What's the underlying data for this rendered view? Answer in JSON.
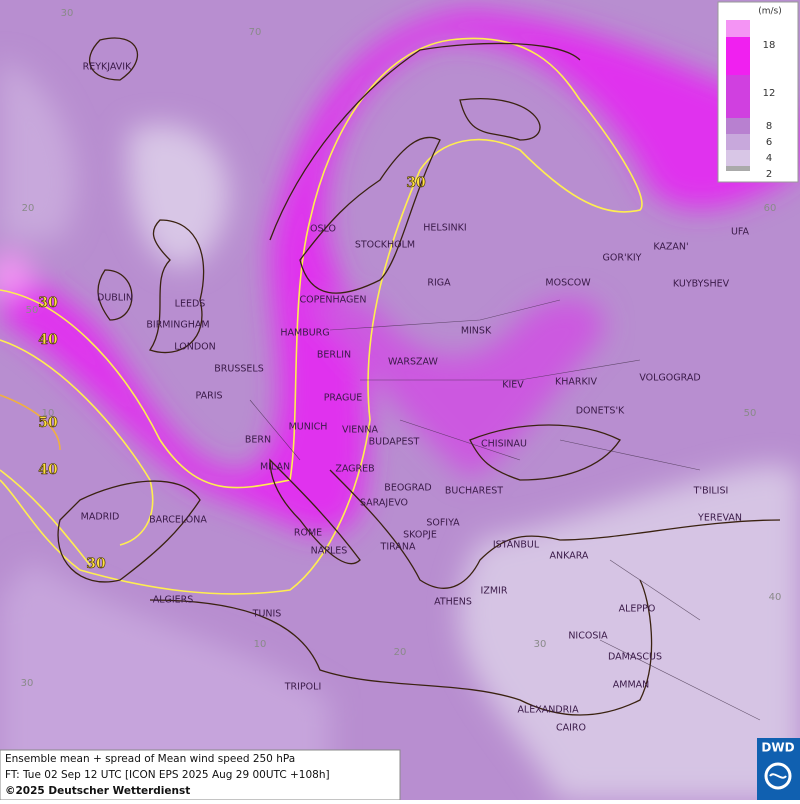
{
  "map": {
    "legend": {
      "unit": "(m/s)",
      "labels": [
        "18",
        "12",
        "8",
        "6",
        "4",
        "2"
      ]
    },
    "cities": [
      "REYKJAVIK",
      "OSLO",
      "STOCKHOLM",
      "HELSINKI",
      "GOR'KIY",
      "KAZAN'",
      "UFA",
      "DUBLIN",
      "LEEDS",
      "COPENHAGEN",
      "RIGA",
      "MOSCOW",
      "KUYBYSHEV",
      "BIRMINGHAM",
      "HAMBURG",
      "MINSK",
      "LONDON",
      "BERLIN",
      "BRUSSELS",
      "WARSZAW",
      "KIEV",
      "KHARKIV",
      "VOLGOGRAD",
      "PARIS",
      "PRAGUE",
      "DONETS'K",
      "BERN",
      "MUNICH",
      "VIENNA",
      "BUDAPEST",
      "CHISINAU",
      "MILAN",
      "ZAGREB",
      "BEOGRAD",
      "BUCHAREST",
      "T'BILISI",
      "MADRID",
      "BARCELONA",
      "SARAJEVO",
      "SOFIYA",
      "YEREVAN",
      "ROME",
      "SKOPJE",
      "ISTANBUL",
      "NAPLES",
      "TIRANA",
      "ANKARA",
      "IZMIR",
      "ALGIERS",
      "ATHENS",
      "ALEPPO",
      "TUNIS",
      "NICOSIA",
      "DAMASCUS",
      "TRIPOLI",
      "AMMAN",
      "ALEXANDRIA",
      "CAIRO"
    ],
    "contour_labels": [
      "30",
      "30",
      "40",
      "50",
      "40",
      "30"
    ],
    "grid_labels": [
      "30",
      "70",
      "20",
      "60",
      "50",
      "10",
      "50",
      "40",
      "30",
      "20",
      "10",
      "30"
    ],
    "footer": [
      "Ensemble mean + spread of Mean wind speed 250 hPa",
      "FT: Tue 02 Sep 12 UTC [ICON EPS 2025 Aug 29 00UTC +108h]",
      "©2025 Deutscher Wetterdienst"
    ],
    "logo": "DWD"
  }
}
